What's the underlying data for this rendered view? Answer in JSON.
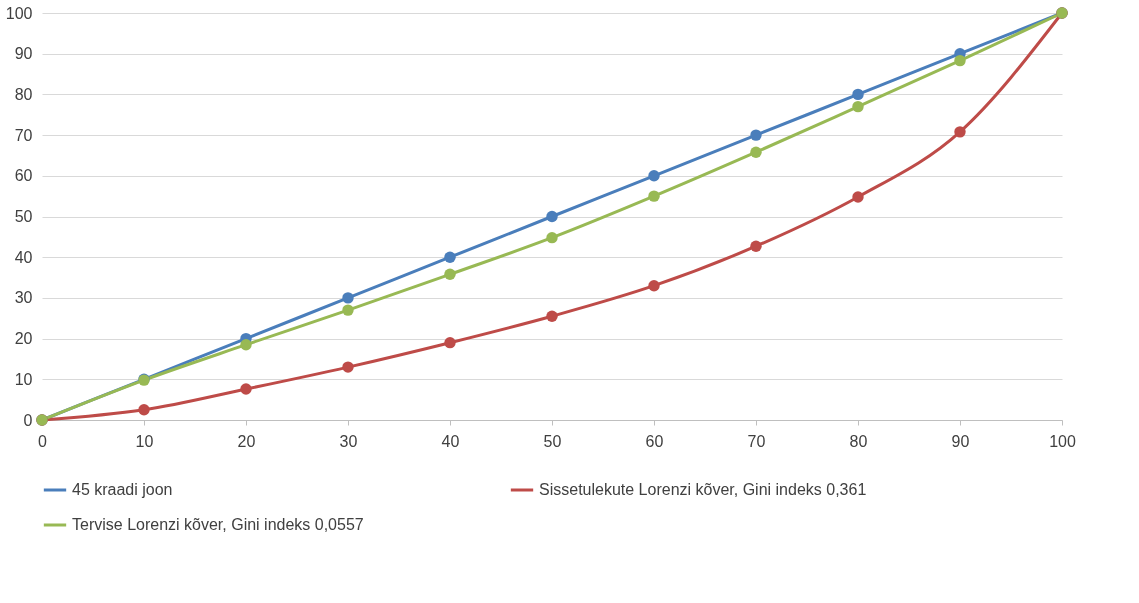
{
  "chart_data": {
    "type": "line",
    "x": [
      0,
      10,
      20,
      30,
      40,
      50,
      60,
      70,
      80,
      90,
      100
    ],
    "series": [
      {
        "name": "45 kraadi joon",
        "color": "#4a7ebb",
        "values": [
          0,
          10,
          20,
          30,
          40,
          50,
          60,
          70,
          80,
          90,
          100
        ]
      },
      {
        "name": "Sissetulekute Lorenzi kõver, Gini indeks 0,361",
        "color": "#be4b48",
        "values": [
          0,
          2.5,
          7.6,
          13,
          19,
          25.5,
          33,
          42.7,
          54.8,
          70.8,
          100
        ]
      },
      {
        "name": "Tervise Lorenzi kõver, Gini indeks 0,0557",
        "color": "#98b954",
        "values": [
          0,
          9.8,
          18.5,
          27,
          35.8,
          44.8,
          55,
          65.8,
          77,
          88.3,
          100
        ]
      }
    ],
    "xlim": [
      0,
      100
    ],
    "xticks": [
      0,
      10,
      20,
      30,
      40,
      50,
      60,
      70,
      80,
      90,
      100
    ],
    "ylim": [
      0,
      100
    ],
    "yticks": [
      0,
      10,
      20,
      30,
      40,
      50,
      60,
      70,
      80,
      90,
      100
    ],
    "grid": "y",
    "legend": "bottom",
    "marker": "circle",
    "line_style": "solid"
  }
}
